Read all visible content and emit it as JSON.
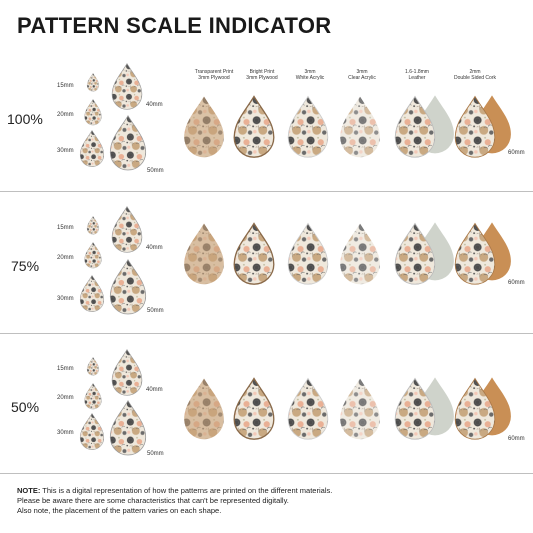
{
  "title": "PATTERN SCALE INDICATOR",
  "materials": [
    {
      "line1": "Transparent Print",
      "line2": "3mm Plywood"
    },
    {
      "line1": "Bright Print",
      "line2": "3mm Plywood"
    },
    {
      "line1": "3mm",
      "line2": "White Acrylic"
    },
    {
      "line1": "3mm",
      "line2": "Clear Acrylic"
    },
    {
      "line1": "1.6-1.8mm",
      "line2": "Leather"
    },
    {
      "line1": "2mm",
      "line2": "Double Sided Cork"
    }
  ],
  "sections": [
    {
      "scale": "100%",
      "sizes": [
        "15mm",
        "20mm",
        "30mm",
        "40mm",
        "50mm"
      ],
      "material_size": "60mm"
    },
    {
      "scale": "75%",
      "sizes": [
        "15mm",
        "20mm",
        "30mm",
        "40mm",
        "50mm"
      ],
      "material_size": "60mm"
    },
    {
      "scale": "50%",
      "sizes": [
        "15mm",
        "20mm",
        "30mm",
        "40mm",
        "50mm"
      ],
      "material_size": "60mm"
    }
  ],
  "note": {
    "label": "NOTE:",
    "line1": " This is a digital representation of how the patterns are printed on the different materials.",
    "line2": "Please be aware there are some characteristics that can't be represented digitally.",
    "line3": "Also note, the placement of the pattern varies on each shape."
  },
  "colors": {
    "plywood": "#c9a27a",
    "bright_base": "#f1ece4",
    "white_acrylic": "#f7f4ef",
    "leather": "#cfd3cb",
    "cork": "#c98f55",
    "dark_dot": "#4a4a4a",
    "peach": "#e8a58a",
    "sage": "#b9b79a"
  }
}
